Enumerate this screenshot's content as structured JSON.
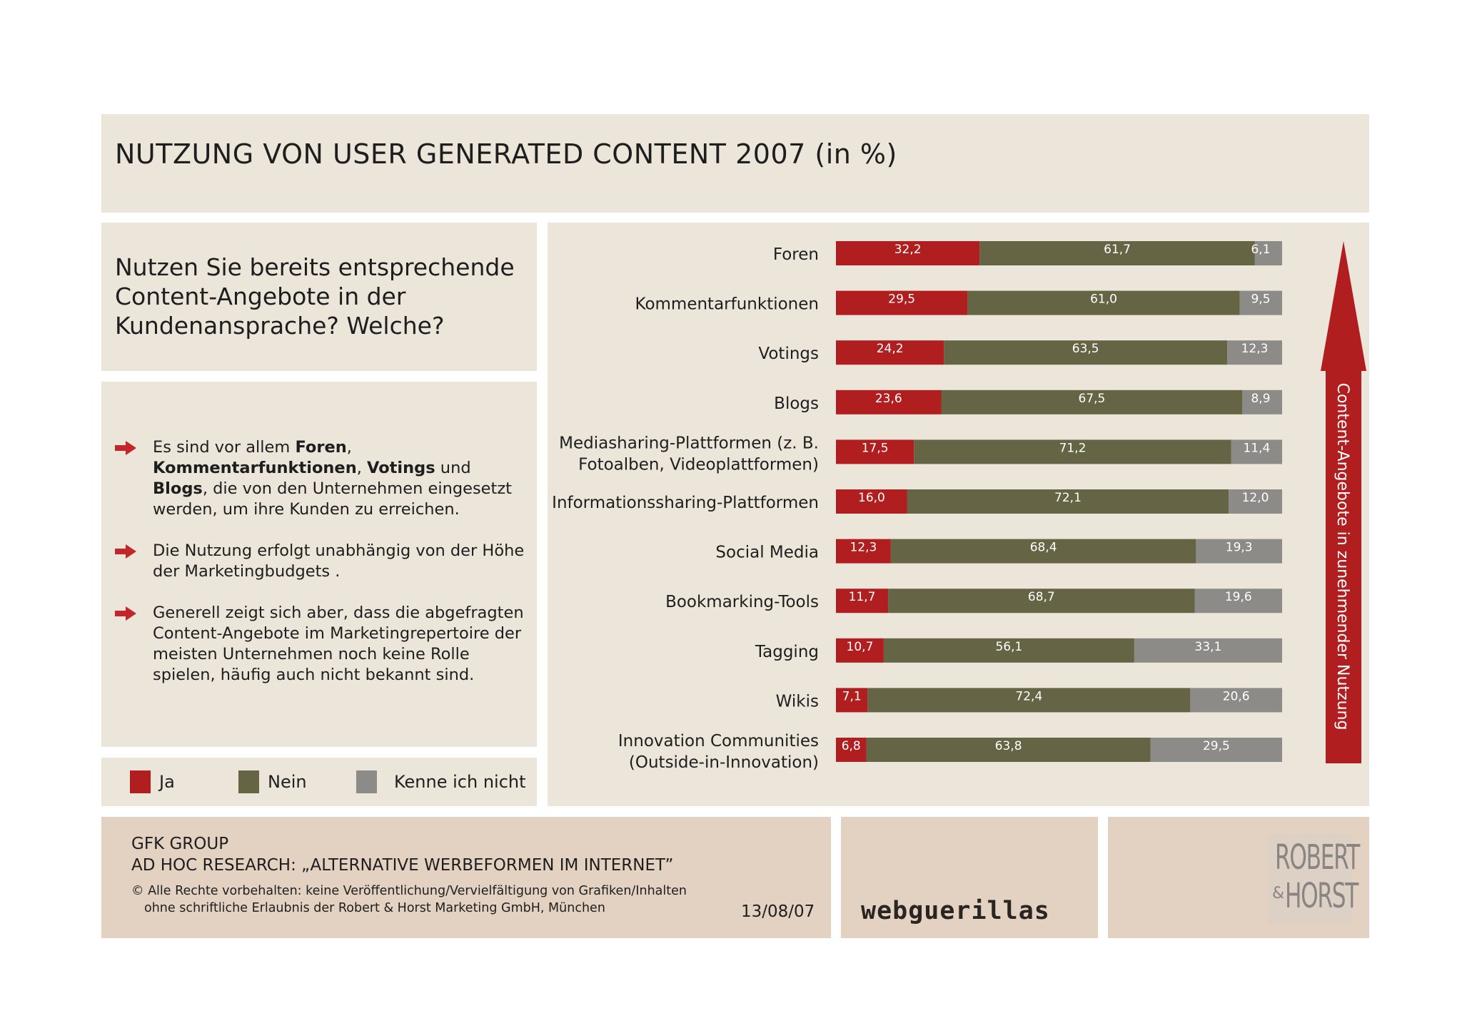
{
  "title": "NUTZUNG VON USER GENERATED CONTENT 2007 (in %)",
  "question": "Nutzen Sie bereits entsprechende Content-Angebote in der Kundenansprache? Welche?",
  "bullets": [
    {
      "parts": [
        {
          "t": "Es sind vor allem ",
          "b": false
        },
        {
          "t": "Foren",
          "b": true
        },
        {
          "t": ", ",
          "b": false
        },
        {
          "t": "Kommentarfunktionen",
          "b": true
        },
        {
          "t": ", ",
          "b": false
        },
        {
          "t": "Votings",
          "b": true
        },
        {
          "t": " und ",
          "b": false
        },
        {
          "t": "Blogs",
          "b": true
        },
        {
          "t": ", die von den Unternehmen eingesetzt werden, um ihre Kunden zu erreichen.",
          "b": false
        }
      ]
    },
    {
      "parts": [
        {
          "t": "Die Nutzung erfolgt unabhängig von der Höhe der Marketingbudgets .",
          "b": false
        }
      ]
    },
    {
      "parts": [
        {
          "t": "Generell zeigt sich aber, dass die abgefragten Content-Angebote im Marketingrepertoire der meisten Unternehmen noch keine Rolle spielen, häufig auch nicht bekannt sind.",
          "b": false
        }
      ]
    }
  ],
  "colors": {
    "ja": "#b01e20",
    "nein": "#656444",
    "kenne": "#8d8b87",
    "arrow": "#b01e20",
    "bullet": "#c0262a"
  },
  "chart_data": {
    "type": "bar",
    "orientation": "horizontal",
    "stacked": true,
    "unit": "%",
    "categories": [
      [
        "Foren"
      ],
      [
        "Kommentarfunktionen"
      ],
      [
        "Votings"
      ],
      [
        "Blogs"
      ],
      [
        "Mediasharing-Plattformen (z. B.",
        "Fotoalben, Videoplattformen)"
      ],
      [
        "Informationssharing-Plattformen"
      ],
      [
        "Social Media"
      ],
      [
        "Bookmarking-Tools"
      ],
      [
        "Tagging"
      ],
      [
        "Wikis"
      ],
      [
        "Innovation Communities",
        "(Outside-in-Innovation)"
      ]
    ],
    "series": [
      {
        "name": "Ja",
        "labels": [
          "32,2",
          "29,5",
          "24,2",
          "23,6",
          "17,5",
          "16,0",
          "12,3",
          "11,7",
          "10,7",
          "7,1",
          "6,8"
        ],
        "values": [
          32.2,
          29.5,
          24.2,
          23.6,
          17.5,
          16.0,
          12.3,
          11.7,
          10.7,
          7.1,
          6.8
        ]
      },
      {
        "name": "Nein",
        "labels": [
          "61,7",
          "61,0",
          "63,5",
          "67,5",
          "71,2",
          "72,1",
          "68,4",
          "68,7",
          "56,1",
          "72,4",
          "63,8"
        ],
        "values": [
          61.7,
          61.0,
          63.5,
          67.5,
          71.2,
          72.1,
          68.4,
          68.7,
          56.1,
          72.4,
          63.8
        ]
      },
      {
        "name": "Kenne ich nicht",
        "labels": [
          "6,1",
          "9,5",
          "12,3",
          "8,9",
          "11,4",
          "12,0",
          "19,3",
          "19,6",
          "33,1",
          "20,6",
          "29,5"
        ],
        "values": [
          6.1,
          9.5,
          12.3,
          8.9,
          11.4,
          12.0,
          19.3,
          19.6,
          33.1,
          20.6,
          29.5
        ]
      }
    ],
    "arrow_label": "Content-Angebote in zunehmender Nutzung"
  },
  "footer": {
    "line1": "GFK GROUP",
    "line2": "AD HOC RESEARCH: „ALTERNATIVE WERBEFORMEN IM INTERNET”",
    "line3": "© Alle Rechte vorbehalten: keine Veröffentlichung/Vervielfältigung von Grafiken/Inhalten",
    "line4": "ohne schriftliche Erlaubnis der Robert & Horst Marketing GmbH, München",
    "date": "13/08/07",
    "logo_mid": "webguerillas",
    "logo_right_1": "ROBERT",
    "logo_right_amp": "&",
    "logo_right_2": "HORST"
  }
}
